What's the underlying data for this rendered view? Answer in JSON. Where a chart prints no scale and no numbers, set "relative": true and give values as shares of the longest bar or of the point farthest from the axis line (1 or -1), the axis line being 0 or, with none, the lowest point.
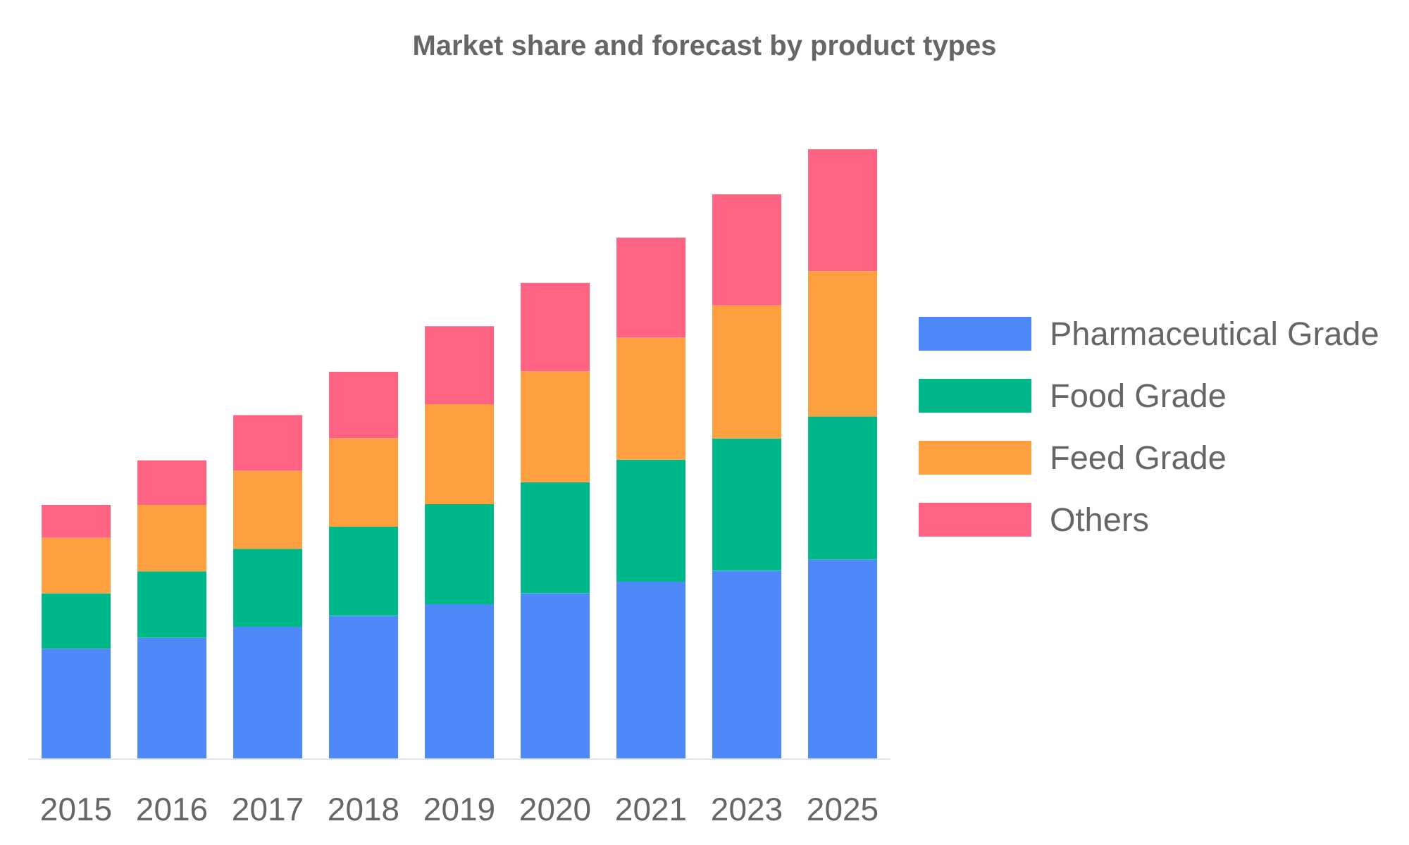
{
  "chart_data": {
    "type": "bar",
    "title": "Market share and forecast by product types",
    "categories": [
      "2015",
      "2016",
      "2017",
      "2018",
      "2019",
      "2020",
      "2021",
      "2023",
      "2025"
    ],
    "stacked": true,
    "relative": true,
    "legend": "right",
    "series": [
      {
        "name": "Pharmaceutical Grade",
        "color": "#4f88f9",
        "values": [
          0.181,
          0.199,
          0.217,
          0.235,
          0.254,
          0.272,
          0.291,
          0.309,
          0.327
        ]
      },
      {
        "name": "Food Grade",
        "color": "#00b78a",
        "values": [
          0.091,
          0.109,
          0.128,
          0.146,
          0.164,
          0.182,
          0.2,
          0.217,
          0.235
        ]
      },
      {
        "name": "Feed Grade",
        "color": "#ffa040",
        "values": [
          0.091,
          0.109,
          0.128,
          0.145,
          0.164,
          0.182,
          0.2,
          0.218,
          0.238
        ]
      },
      {
        "name": "Others",
        "color": "#ff6384",
        "values": [
          0.054,
          0.073,
          0.091,
          0.109,
          0.128,
          0.145,
          0.164,
          0.182,
          0.2
        ]
      }
    ]
  }
}
